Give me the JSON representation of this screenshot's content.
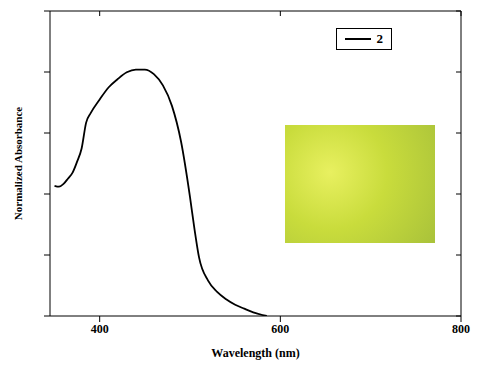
{
  "chart_data": {
    "type": "line",
    "x_label": "Wavelength (nm)",
    "y_label": "Normalized Absorbance",
    "x": [
      350,
      355,
      360,
      365,
      370,
      375,
      380,
      385,
      390,
      400,
      410,
      420,
      430,
      440,
      450,
      460,
      470,
      480,
      490,
      500,
      505,
      510,
      520,
      530,
      540,
      550,
      560,
      570,
      585
    ],
    "series": [
      {
        "name": "2",
        "color": "#000000",
        "values": [
          0.427,
          0.424,
          0.433,
          0.451,
          0.47,
          0.506,
          0.549,
          0.634,
          0.665,
          0.71,
          0.75,
          0.777,
          0.799,
          0.808,
          0.808,
          0.793,
          0.756,
          0.689,
          0.573,
          0.39,
          0.284,
          0.192,
          0.116,
          0.079,
          0.055,
          0.037,
          0.024,
          0.012,
          0
        ]
      }
    ],
    "xlim": [
      345,
      800
    ],
    "xticks": [
      400,
      600,
      800
    ],
    "ylim": [
      0,
      1
    ],
    "yticks": [
      0,
      0.2,
      0.4,
      0.6,
      0.8,
      1
    ],
    "tick_labels": "x",
    "legend": "upper right"
  }
}
